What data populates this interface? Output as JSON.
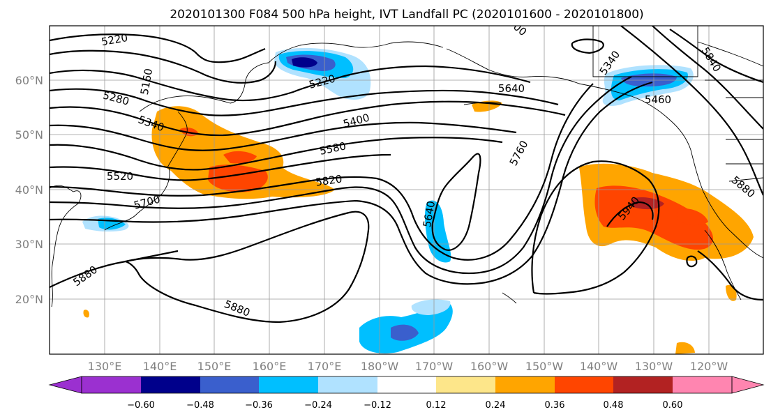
{
  "title": "2020101300 F084 500 hPa height, IVT Landfall PC (2020101600 - 2020101800)",
  "map": {
    "lat_labels": [
      "60°N",
      "50°N",
      "40°N",
      "30°N",
      "20°N"
    ],
    "lon_labels": [
      "130°E",
      "140°E",
      "150°E",
      "160°E",
      "170°E",
      "180°W",
      "170°W",
      "160°W",
      "150°W",
      "140°W",
      "130°W",
      "120°W"
    ],
    "contour_labels": [
      "5220",
      "5160",
      "5280",
      "5340",
      "5220",
      "5400",
      "5580",
      "5820",
      "5520",
      "5700",
      "5880",
      "5880",
      "5640",
      "5640",
      "5760",
      "5340",
      "5460",
      "5840",
      "5940",
      "5880",
      "00"
    ],
    "shading_colors": {
      "purple": "#9b30d0",
      "navy": "#00008b",
      "royal": "#3a5fcd",
      "sky": "#00bfff",
      "light": "#b0e2ff",
      "white": "#ffffff",
      "pale": "#fde68a",
      "orange": "#ffa500",
      "redorange": "#ff4500",
      "darkred": "#b22222",
      "pink": "#ff85b0"
    }
  },
  "colorbar": {
    "ticks": [
      "−0.60",
      "−0.48",
      "−0.36",
      "−0.24",
      "−0.12",
      "0.12",
      "0.24",
      "0.36",
      "0.48",
      "0.60"
    ],
    "colors": [
      "#9b30d0",
      "#00008b",
      "#3a5fcd",
      "#00bfff",
      "#b0e2ff",
      "#ffffff",
      "#fde68a",
      "#ffa500",
      "#ff4500",
      "#b22222",
      "#ff85b0"
    ]
  }
}
